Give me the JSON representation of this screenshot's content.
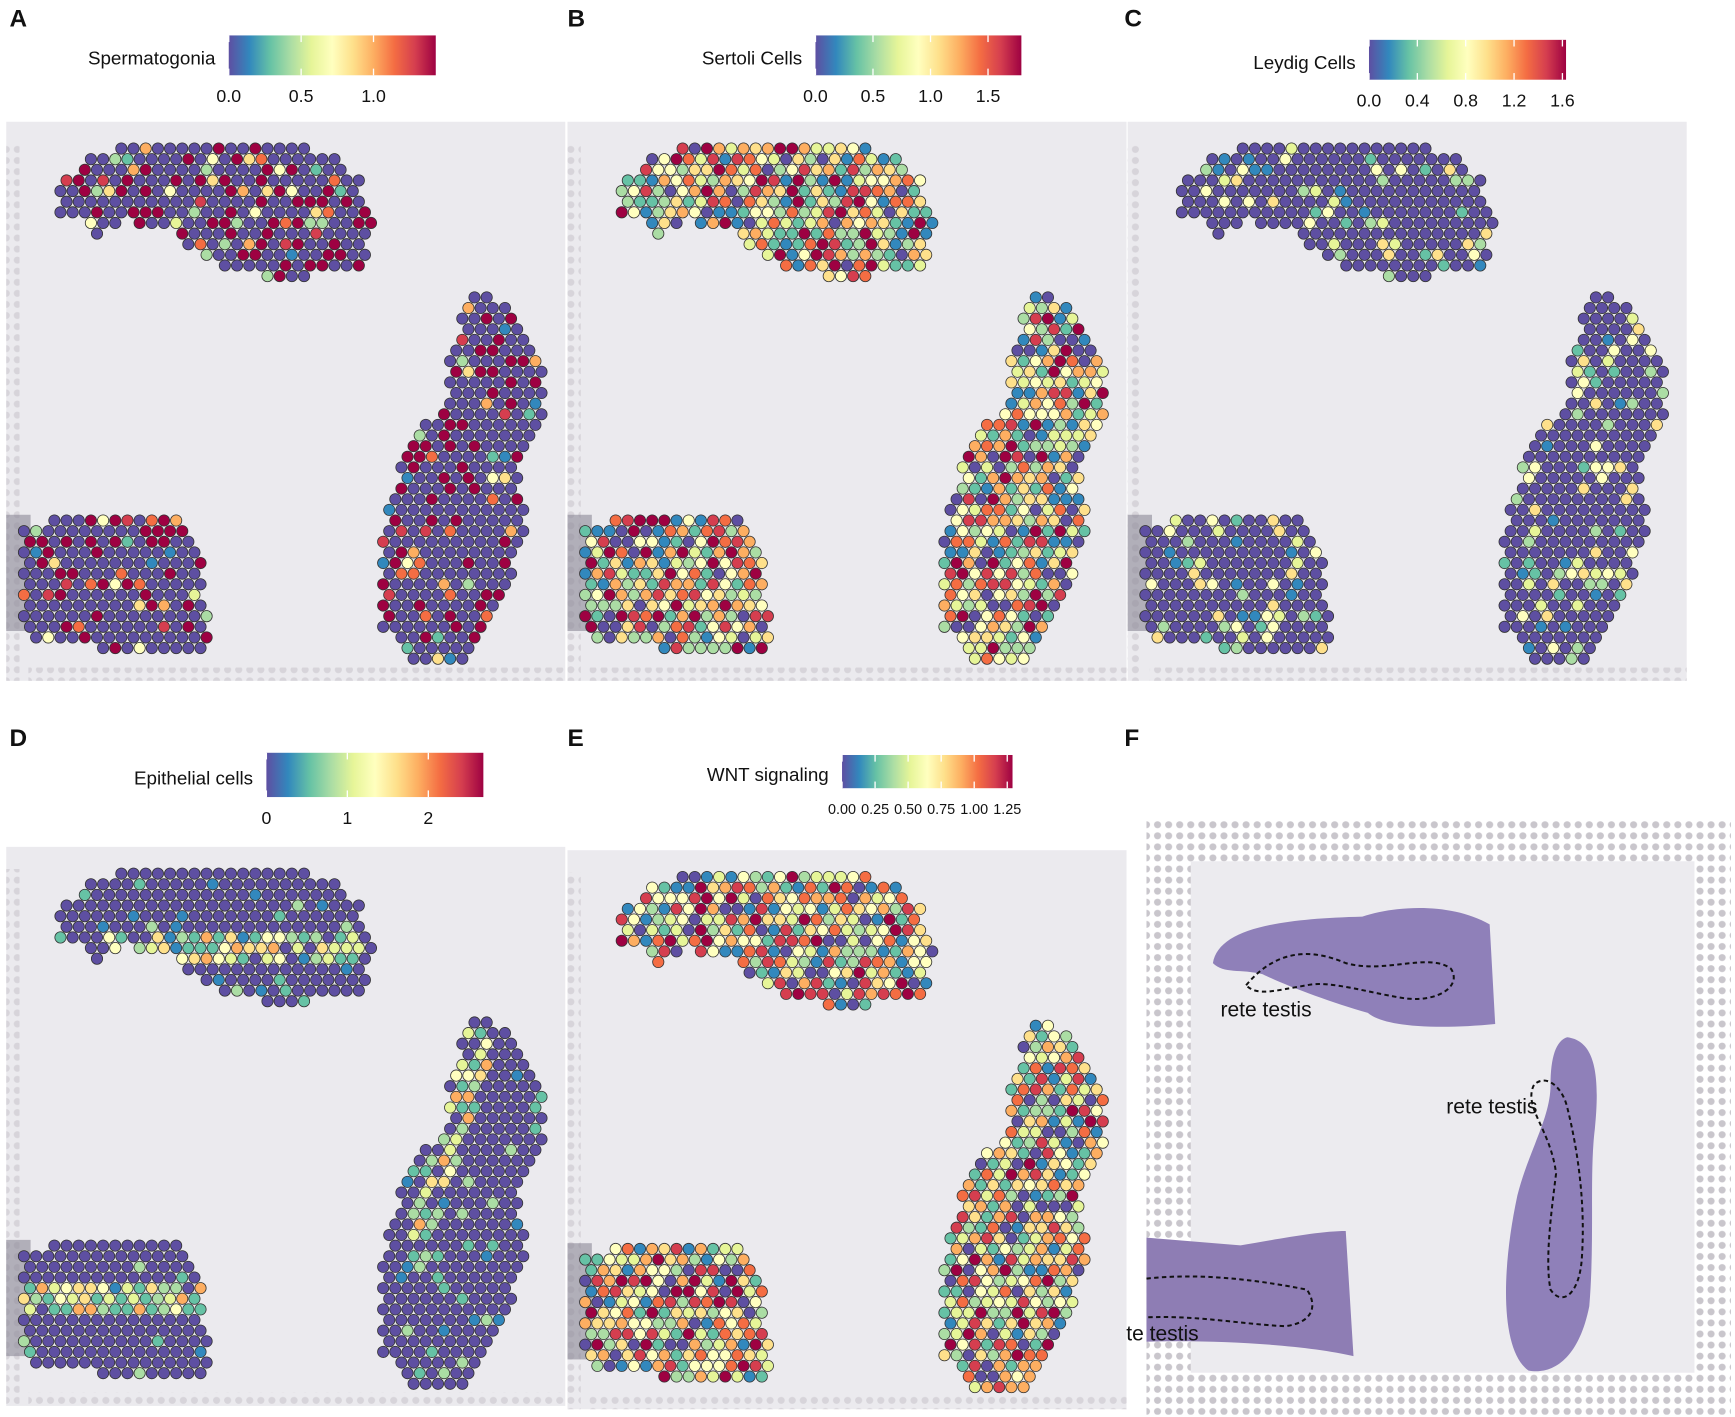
{
  "panels": [
    {
      "letter": "A",
      "legend_title": "Spermatogonia",
      "colorbar": {
        "range": [
          0,
          1.43
        ],
        "ticks": [
          {
            "value": 0,
            "label": "0.0"
          },
          {
            "value": 0.5,
            "label": "0.5"
          },
          {
            "value": 1,
            "label": "1.0"
          }
        ]
      }
    },
    {
      "letter": "B",
      "legend_title": "Sertoli Cells",
      "colorbar": {
        "range": [
          0,
          1.79
        ],
        "ticks": [
          {
            "value": 0,
            "label": "0.0"
          },
          {
            "value": 0.5,
            "label": "0.5"
          },
          {
            "value": 1,
            "label": "1.0"
          },
          {
            "value": 1.5,
            "label": "1.5"
          }
        ]
      }
    },
    {
      "letter": "C",
      "legend_title": "Leydig Cells",
      "colorbar": {
        "range": [
          0,
          1.63
        ],
        "ticks": [
          {
            "value": 0,
            "label": "0.0"
          },
          {
            "value": 0.4,
            "label": "0.4"
          },
          {
            "value": 0.8,
            "label": "0.8"
          },
          {
            "value": 1.2,
            "label": "1.2"
          },
          {
            "value": 1.6,
            "label": "1.6"
          }
        ]
      }
    },
    {
      "letter": "D",
      "legend_title": "Epithelial cells",
      "colorbar": {
        "range": [
          0,
          2.68
        ],
        "ticks": [
          0,
          1,
          2
        ]
      }
    },
    {
      "letter": "E",
      "legend_title": "WNT signaling",
      "colorbar": {
        "range": [
          0,
          1.29
        ],
        "ticks": [
          {
            "value": 0,
            "label": "0.00"
          },
          {
            "value": 0.25,
            "label": "0.25"
          },
          {
            "value": 0.5,
            "label": "0.50"
          },
          {
            "value": 0.75,
            "label": "0.75"
          },
          {
            "value": 1,
            "label": "1.00"
          },
          {
            "value": 1.25,
            "label": "1.25"
          }
        ]
      }
    }
  ],
  "panel_f": {
    "letter": "F",
    "annotations": [
      "rete testis",
      "rete testis",
      "rete testis"
    ]
  }
}
